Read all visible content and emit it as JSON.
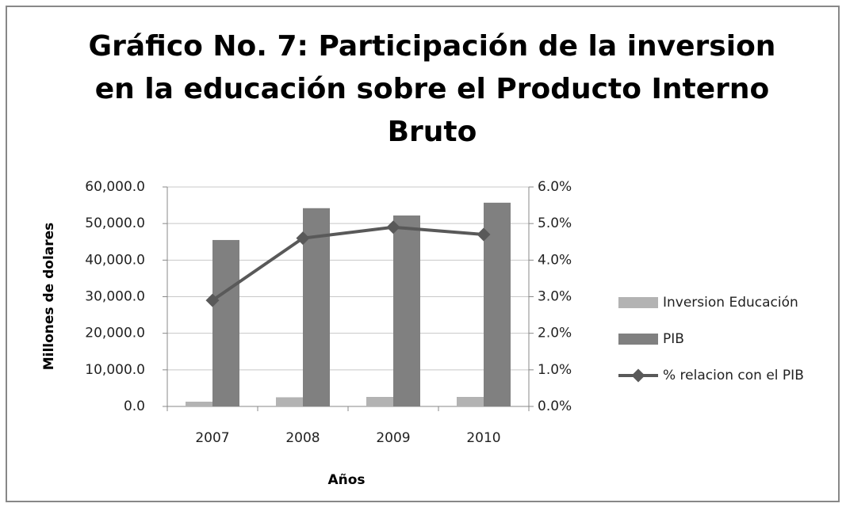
{
  "chart_data": {
    "type": "bar-line",
    "title_lines": [
      "Gráfico  No. 7: Participación de la inversion",
      "en la educación sobre el Producto Interno",
      "Bruto"
    ],
    "x_label": "Años",
    "y_label": "Millones de dolares",
    "categories": [
      "2007",
      "2008",
      "2009",
      "2010"
    ],
    "series": [
      {
        "name": "Inversion Educación",
        "type": "bar",
        "color": "#b3b3b3",
        "values": [
          1300,
          2500,
          2600,
          2600
        ]
      },
      {
        "name": "PIB",
        "type": "bar",
        "color": "#808080",
        "values": [
          45500,
          54200,
          52200,
          55700
        ]
      },
      {
        "name": "% relacion con el PIB",
        "type": "line",
        "axis": "y2",
        "color": "#595959",
        "values": [
          2.9,
          4.6,
          4.9,
          4.7
        ]
      }
    ],
    "ylim": [
      0,
      60000
    ],
    "yticks": [
      {
        "value": 0,
        "label": "0.0"
      },
      {
        "value": 10000,
        "label": "10,000.0"
      },
      {
        "value": 20000,
        "label": "20,000.0"
      },
      {
        "value": 30000,
        "label": "30,000.0"
      },
      {
        "value": 40000,
        "label": "40,000.0"
      },
      {
        "value": 50000,
        "label": "50,000.0"
      },
      {
        "value": 60000,
        "label": "60,000.0"
      }
    ],
    "y2lim": [
      0,
      6
    ],
    "y2ticks": [
      {
        "value": 0,
        "label": "0.0%"
      },
      {
        "value": 1,
        "label": "1.0%"
      },
      {
        "value": 2,
        "label": "2.0%"
      },
      {
        "value": 3,
        "label": "3.0%"
      },
      {
        "value": 4,
        "label": "4.0%"
      },
      {
        "value": 5,
        "label": "5.0%"
      },
      {
        "value": 6,
        "label": "6.0%"
      }
    ],
    "grid": true,
    "legend": "right"
  }
}
